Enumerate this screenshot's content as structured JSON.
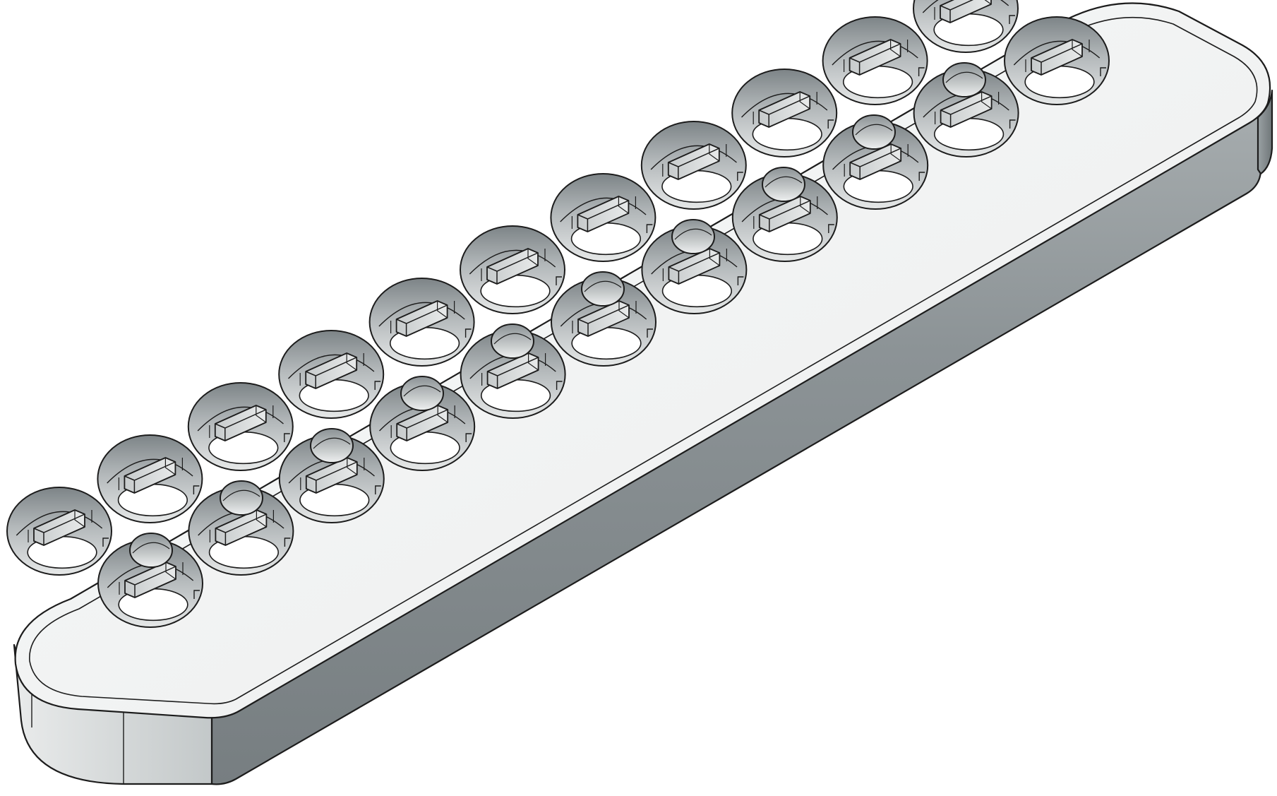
{
  "figure": {
    "subject": "rack-plate",
    "view": "isometric",
    "colors": {
      "background": "#ffffff",
      "top_face": "#f2f3f3",
      "top_face_highlight": "#f9fafa",
      "front_face": "#8c9396",
      "end_face": "#c9cdce",
      "edge_band": "#bfc4c5",
      "outline": "#1c1c1c",
      "bore_wall_light": "#e6e8e8",
      "bore_wall_mid": "#b3b8ba",
      "bore_wall_dark": "#7d8487",
      "bore_floor": "#ffffff",
      "tab_face": "#d3d6d7"
    },
    "features": {
      "large_bores": 22,
      "small_holes": 10,
      "tabs_per_bore": 1
    }
  }
}
